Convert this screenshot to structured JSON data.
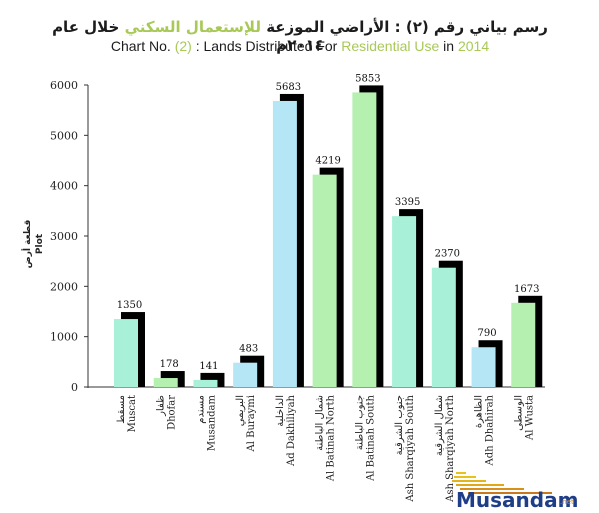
{
  "title_ar_prefix": "رسم بياني رقم (٢) : الأراضي الموزعة ",
  "title_ar_highlight": "للإستعمال السكني",
  "title_ar_suffix": " خلال عام ٢٠١٤م",
  "title_en_part1": "Chart No. ",
  "title_en_num": "(2)",
  "title_en_part2": " : Lands Distributed For ",
  "title_en_highlight": "Residential Use",
  "title_en_part3": " in ",
  "title_en_year": "2014",
  "ylabel_ar": "قطعة أرض",
  "ylabel_en": "Plot",
  "logo_text": "Musandam",
  "logo_suffix": ".net",
  "colors": {
    "teal": "#a9f0d9",
    "blue": "#b5e6f5",
    "green": "#b5f0b1",
    "shadow": "#000000",
    "highlight": "#a8c957",
    "axis": "#333333"
  },
  "chart_data": {
    "type": "bar",
    "ylim": [
      0,
      6000
    ],
    "yticks": [
      0,
      1000,
      2000,
      3000,
      4000,
      5000,
      6000
    ],
    "grid": false,
    "categories": [
      {
        "ar": "مسقط",
        "en": "Muscat",
        "value": 1350,
        "color": "teal"
      },
      {
        "ar": "ظفار",
        "en": "Dhofar",
        "value": 178,
        "color": "green"
      },
      {
        "ar": "مسندم",
        "en": "Musandam",
        "value": 141,
        "color": "teal"
      },
      {
        "ar": "البريمي",
        "en": "Al Buraymi",
        "value": 483,
        "color": "blue"
      },
      {
        "ar": "الداخلية",
        "en": "Ad Dakhiliyah",
        "value": 5683,
        "color": "blue"
      },
      {
        "ar": "شمال الباطنة",
        "en": "Al Batinah North",
        "value": 4219,
        "color": "green"
      },
      {
        "ar": "جنوب الباطنة",
        "en": "Al Batinah South",
        "value": 5853,
        "color": "green"
      },
      {
        "ar": "جنوب الشرقية",
        "en": "Ash Sharqiyah South",
        "value": 3395,
        "color": "teal"
      },
      {
        "ar": "شمال الشرقية",
        "en": "Ash Sharqiyah North",
        "value": 2370,
        "color": "teal"
      },
      {
        "ar": "الظاهرة",
        "en": "Adh Dhahirah",
        "value": 790,
        "color": "blue"
      },
      {
        "ar": "الوسطى",
        "en": "Al Wusta",
        "value": 1673,
        "color": "green"
      }
    ]
  }
}
